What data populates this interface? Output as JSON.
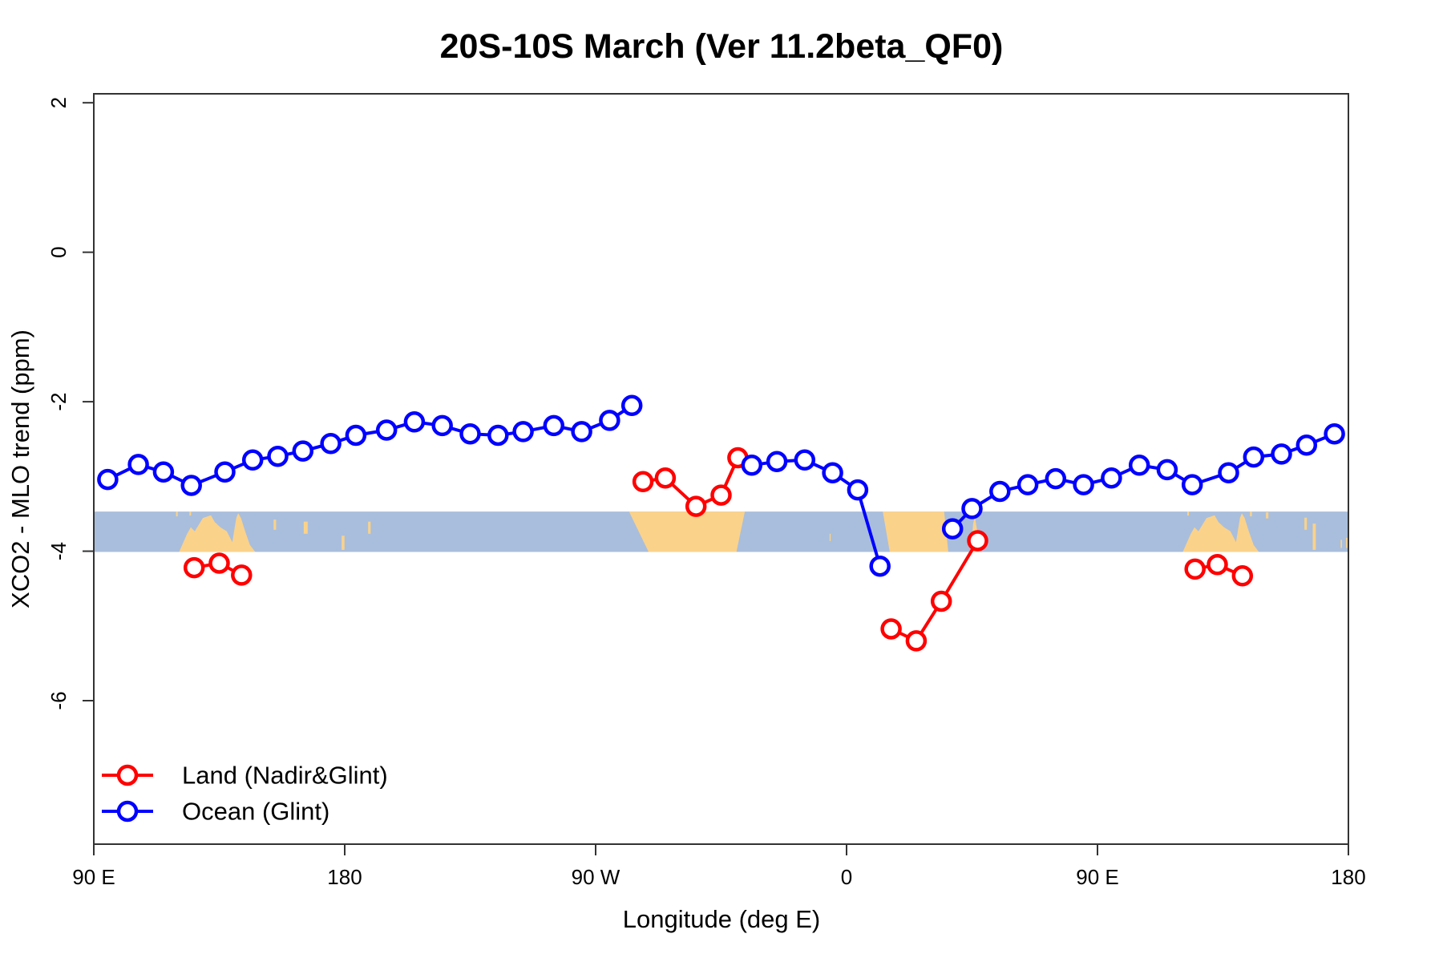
{
  "chart_data": {
    "type": "line",
    "title": "20S-10S March (Ver 11.2beta_QF0)",
    "xlabel": "Longitude (deg E)",
    "ylabel": "XCO2 - MLO trend (ppm)",
    "x_axis": {
      "range": [
        90,
        540
      ],
      "ticks": [
        {
          "value": 90,
          "label": "90 E"
        },
        {
          "value": 180,
          "label": "180"
        },
        {
          "value": 270,
          "label": "90 W"
        },
        {
          "value": 360,
          "label": "0"
        },
        {
          "value": 450,
          "label": "90 E"
        },
        {
          "value": 540,
          "label": "180"
        }
      ],
      "note": "longitude increases eastward from 90E and wraps: 90E, 180, 90W, 0, 90E, 180"
    },
    "y_axis": {
      "range": [
        -7.92,
        2.12
      ],
      "ticks": [
        {
          "value": 2,
          "label": "2"
        },
        {
          "value": 0,
          "label": "0"
        },
        {
          "value": -2,
          "label": "-2"
        },
        {
          "value": -4,
          "label": "-4"
        },
        {
          "value": -6,
          "label": "-6"
        }
      ]
    },
    "grid": false,
    "legend_position": "bottom-left-inside",
    "marker": "open-circle",
    "series": [
      {
        "key": "land",
        "name": "Land (Nadir&Glint)",
        "color": "#ff0000",
        "segments": [
          [
            [
              126,
              -4.22
            ],
            [
              135,
              -4.16
            ],
            [
              143,
              -4.32
            ]
          ],
          [
            [
              287,
              -3.07
            ],
            [
              295,
              -3.02
            ],
            [
              306,
              -3.4
            ],
            [
              315,
              -3.25
            ],
            [
              321,
              -2.75
            ]
          ],
          [
            [
              376,
              -5.04
            ],
            [
              385,
              -5.2
            ],
            [
              394,
              -4.67
            ],
            [
              407,
              -3.86
            ]
          ],
          [
            [
              485,
              -4.24
            ],
            [
              493,
              -4.18
            ],
            [
              502,
              -4.33
            ]
          ]
        ]
      },
      {
        "key": "ocean",
        "name": "Ocean (Glint)",
        "color": "#0000ff",
        "segments": [
          [
            [
              95,
              -3.04
            ],
            [
              106,
              -2.84
            ],
            [
              115,
              -2.94
            ],
            [
              125,
              -3.12
            ],
            [
              137,
              -2.94
            ],
            [
              147,
              -2.78
            ],
            [
              156,
              -2.73
            ],
            [
              165,
              -2.66
            ],
            [
              175,
              -2.56
            ],
            [
              184,
              -2.45
            ],
            [
              195,
              -2.38
            ],
            [
              205,
              -2.27
            ],
            [
              215,
              -2.32
            ],
            [
              225,
              -2.43
            ],
            [
              235,
              -2.45
            ],
            [
              244,
              -2.4
            ],
            [
              255,
              -2.32
            ],
            [
              265,
              -2.4
            ],
            [
              275,
              -2.25
            ],
            [
              283,
              -2.05
            ]
          ],
          [
            [
              326,
              -2.85
            ],
            [
              335,
              -2.8
            ],
            [
              345,
              -2.78
            ],
            [
              355,
              -2.95
            ],
            [
              364,
              -3.18
            ],
            [
              372,
              -4.2
            ]
          ],
          [
            [
              398,
              -3.7
            ],
            [
              405,
              -3.43
            ],
            [
              415,
              -3.2
            ],
            [
              425,
              -3.11
            ],
            [
              435,
              -3.03
            ],
            [
              445,
              -3.11
            ],
            [
              455,
              -3.02
            ],
            [
              465,
              -2.85
            ],
            [
              475,
              -2.91
            ],
            [
              484,
              -3.11
            ],
            [
              497,
              -2.95
            ],
            [
              506,
              -2.74
            ],
            [
              516,
              -2.7
            ],
            [
              525,
              -2.58
            ],
            [
              535,
              -2.43
            ]
          ]
        ]
      }
    ],
    "map_band": {
      "value_top": -3.47,
      "value_bottom": -4.01,
      "ocean_color": "#a9bedc",
      "land_color": "#fbd28a",
      "land_polygons": [
        {
          "name": "australia",
          "points": [
            [
              120.6,
              1
            ],
            [
              123.4,
              0.56
            ],
            [
              124.8,
              0.39
            ],
            [
              126.2,
              0.49
            ],
            [
              129.1,
              0.16
            ],
            [
              132,
              0.09
            ],
            [
              133.4,
              0.26
            ],
            [
              135.4,
              0.39
            ],
            [
              137.7,
              0.49
            ],
            [
              139.7,
              0.76
            ],
            [
              141.1,
              0.16
            ],
            [
              141.8,
              0.04
            ],
            [
              142.8,
              0.16
            ],
            [
              144.3,
              0.49
            ],
            [
              146,
              0.83
            ],
            [
              147.9,
              1
            ]
          ]
        },
        {
          "name": "south-america",
          "points": [
            [
              282,
              0
            ],
            [
              289,
              1
            ],
            [
              320.5,
              1
            ],
            [
              323.5,
              0
            ]
          ]
        },
        {
          "name": "africa",
          "points": [
            [
              373,
              0
            ],
            [
              375.5,
              1
            ],
            [
              396.5,
              1
            ],
            [
              395,
              0
            ]
          ]
        },
        {
          "name": "madagascar",
          "points": [
            [
              404.6,
              1
            ],
            [
              405.4,
              0.3
            ],
            [
              406,
              0.12
            ],
            [
              406.9,
              0.5
            ],
            [
              408,
              1
            ]
          ]
        },
        {
          "name": "australia-wrapped",
          "points": [
            [
              480.6,
              1
            ],
            [
              483.4,
              0.56
            ],
            [
              484.8,
              0.39
            ],
            [
              486.2,
              0.49
            ],
            [
              489.1,
              0.16
            ],
            [
              492,
              0.09
            ],
            [
              493.4,
              0.26
            ],
            [
              495.4,
              0.39
            ],
            [
              497.7,
              0.49
            ],
            [
              499.7,
              0.76
            ],
            [
              501.1,
              0.16
            ],
            [
              501.8,
              0.04
            ],
            [
              502.8,
              0.16
            ],
            [
              504.3,
              0.49
            ],
            [
              506,
              0.83
            ],
            [
              507.9,
              1
            ]
          ]
        }
      ],
      "island_specks": [
        [
          119.5,
          0.0,
          0.6,
          0.12
        ],
        [
          124.3,
          0.0,
          0.6,
          0.1
        ],
        [
          154.5,
          0.2,
          0.9,
          0.25
        ],
        [
          165.3,
          0.25,
          1.4,
          0.3
        ],
        [
          178.9,
          0.6,
          1.0,
          0.35
        ],
        [
          188.4,
          0.25,
          0.9,
          0.3
        ],
        [
          353.9,
          0.55,
          0.4,
          0.18
        ],
        [
          482.2,
          0.0,
          0.6,
          0.1
        ],
        [
          504.7,
          0.0,
          0.7,
          0.12
        ],
        [
          510.4,
          0.02,
          0.9,
          0.15
        ],
        [
          524.2,
          0.15,
          0.9,
          0.3
        ],
        [
          527.2,
          0.3,
          1.1,
          0.65
        ],
        [
          537.2,
          0.7,
          0.5,
          0.2
        ],
        [
          539.2,
          0.65,
          0.8,
          0.25
        ]
      ]
    }
  }
}
